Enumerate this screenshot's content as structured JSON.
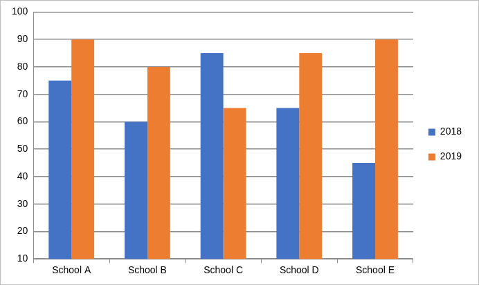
{
  "chart_data": {
    "type": "bar",
    "categories": [
      "School A",
      "School B",
      "School C",
      "School D",
      "School E"
    ],
    "series": [
      {
        "name": "2018",
        "color": "#4472c4",
        "values": [
          75,
          60,
          85,
          65,
          45
        ]
      },
      {
        "name": "2019",
        "color": "#ed7d31",
        "values": [
          90,
          80,
          65,
          85,
          90
        ]
      }
    ],
    "ylim": [
      10,
      100
    ],
    "yticks": [
      10,
      20,
      30,
      40,
      50,
      60,
      70,
      80,
      90,
      100
    ],
    "grid": true,
    "legend": "right"
  }
}
